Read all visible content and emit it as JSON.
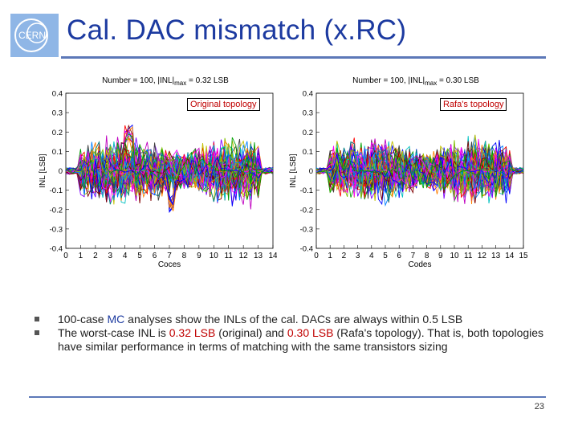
{
  "header": {
    "title": "Cal. DAC mismatch (x.RC)",
    "logo_text": "CERN"
  },
  "chart_data": [
    {
      "type": "line",
      "title_main": "Number = 100, |INL|",
      "title_sub": "max",
      "title_tail": " = 0.32 LSB",
      "annotation": "Original topology",
      "xlabel": "Coces",
      "ylabel": "INL [LSB]",
      "x": [
        0,
        1,
        2,
        3,
        4,
        5,
        6,
        7,
        8,
        9,
        10,
        11,
        12,
        13,
        14
      ],
      "xlim": [
        0,
        14
      ],
      "ylim": [
        -0.4,
        0.4
      ],
      "xticks": [
        "0",
        "1",
        "2",
        "3",
        "4",
        "5",
        "6",
        "7",
        "8",
        "9",
        "10",
        "11",
        "12",
        "13",
        "14"
      ],
      "yticks": [
        "0.4",
        "0.3",
        "0.2",
        "0.1",
        "0",
        "-0.1",
        "-0.2",
        "-0.3",
        "-0.4"
      ],
      "num_series": 100,
      "max_abs_inl": 0.32
    },
    {
      "type": "line",
      "title_main": "Number = 100, |INL|",
      "title_sub": "max",
      "title_tail": " = 0.30 LSB",
      "annotation": "Rafa's topology",
      "xlabel": "Codes",
      "ylabel": "INL [LSB]",
      "x": [
        0,
        1,
        2,
        3,
        4,
        5,
        6,
        7,
        8,
        9,
        10,
        11,
        12,
        13,
        14,
        15
      ],
      "xlim": [
        0,
        15
      ],
      "ylim": [
        -0.4,
        0.4
      ],
      "xticks": [
        "0",
        "1",
        "2",
        "3",
        "4",
        "5",
        "6",
        "7",
        "8",
        "9",
        "10",
        "11",
        "12",
        "13",
        "14",
        "15"
      ],
      "yticks": [
        "0.4",
        "0.3",
        "0.2",
        "0.1",
        "0",
        "-0.1",
        "-0.2",
        "-0.3",
        "-0.4"
      ],
      "num_series": 100,
      "max_abs_inl": 0.3
    }
  ],
  "bullets": [
    {
      "pre": "100-case ",
      "hl1": "MC",
      "post": " analyses show the INLs of the cal. DACs are always within 0.5 LSB"
    },
    {
      "pre": "The worst-case INL is ",
      "hl1": "0.32 LSB",
      "mid1": " (original) and ",
      "hl2": "0.30 LSB",
      "post": " (Rafa's topology). That is, both topologies have similar performance in terms of matching with the same transistors sizing"
    }
  ],
  "footer": {
    "page_number": "23"
  },
  "colors": {
    "accent": "#1c3aa0",
    "rule": "#5c78b8",
    "highlight": "#c00000"
  }
}
